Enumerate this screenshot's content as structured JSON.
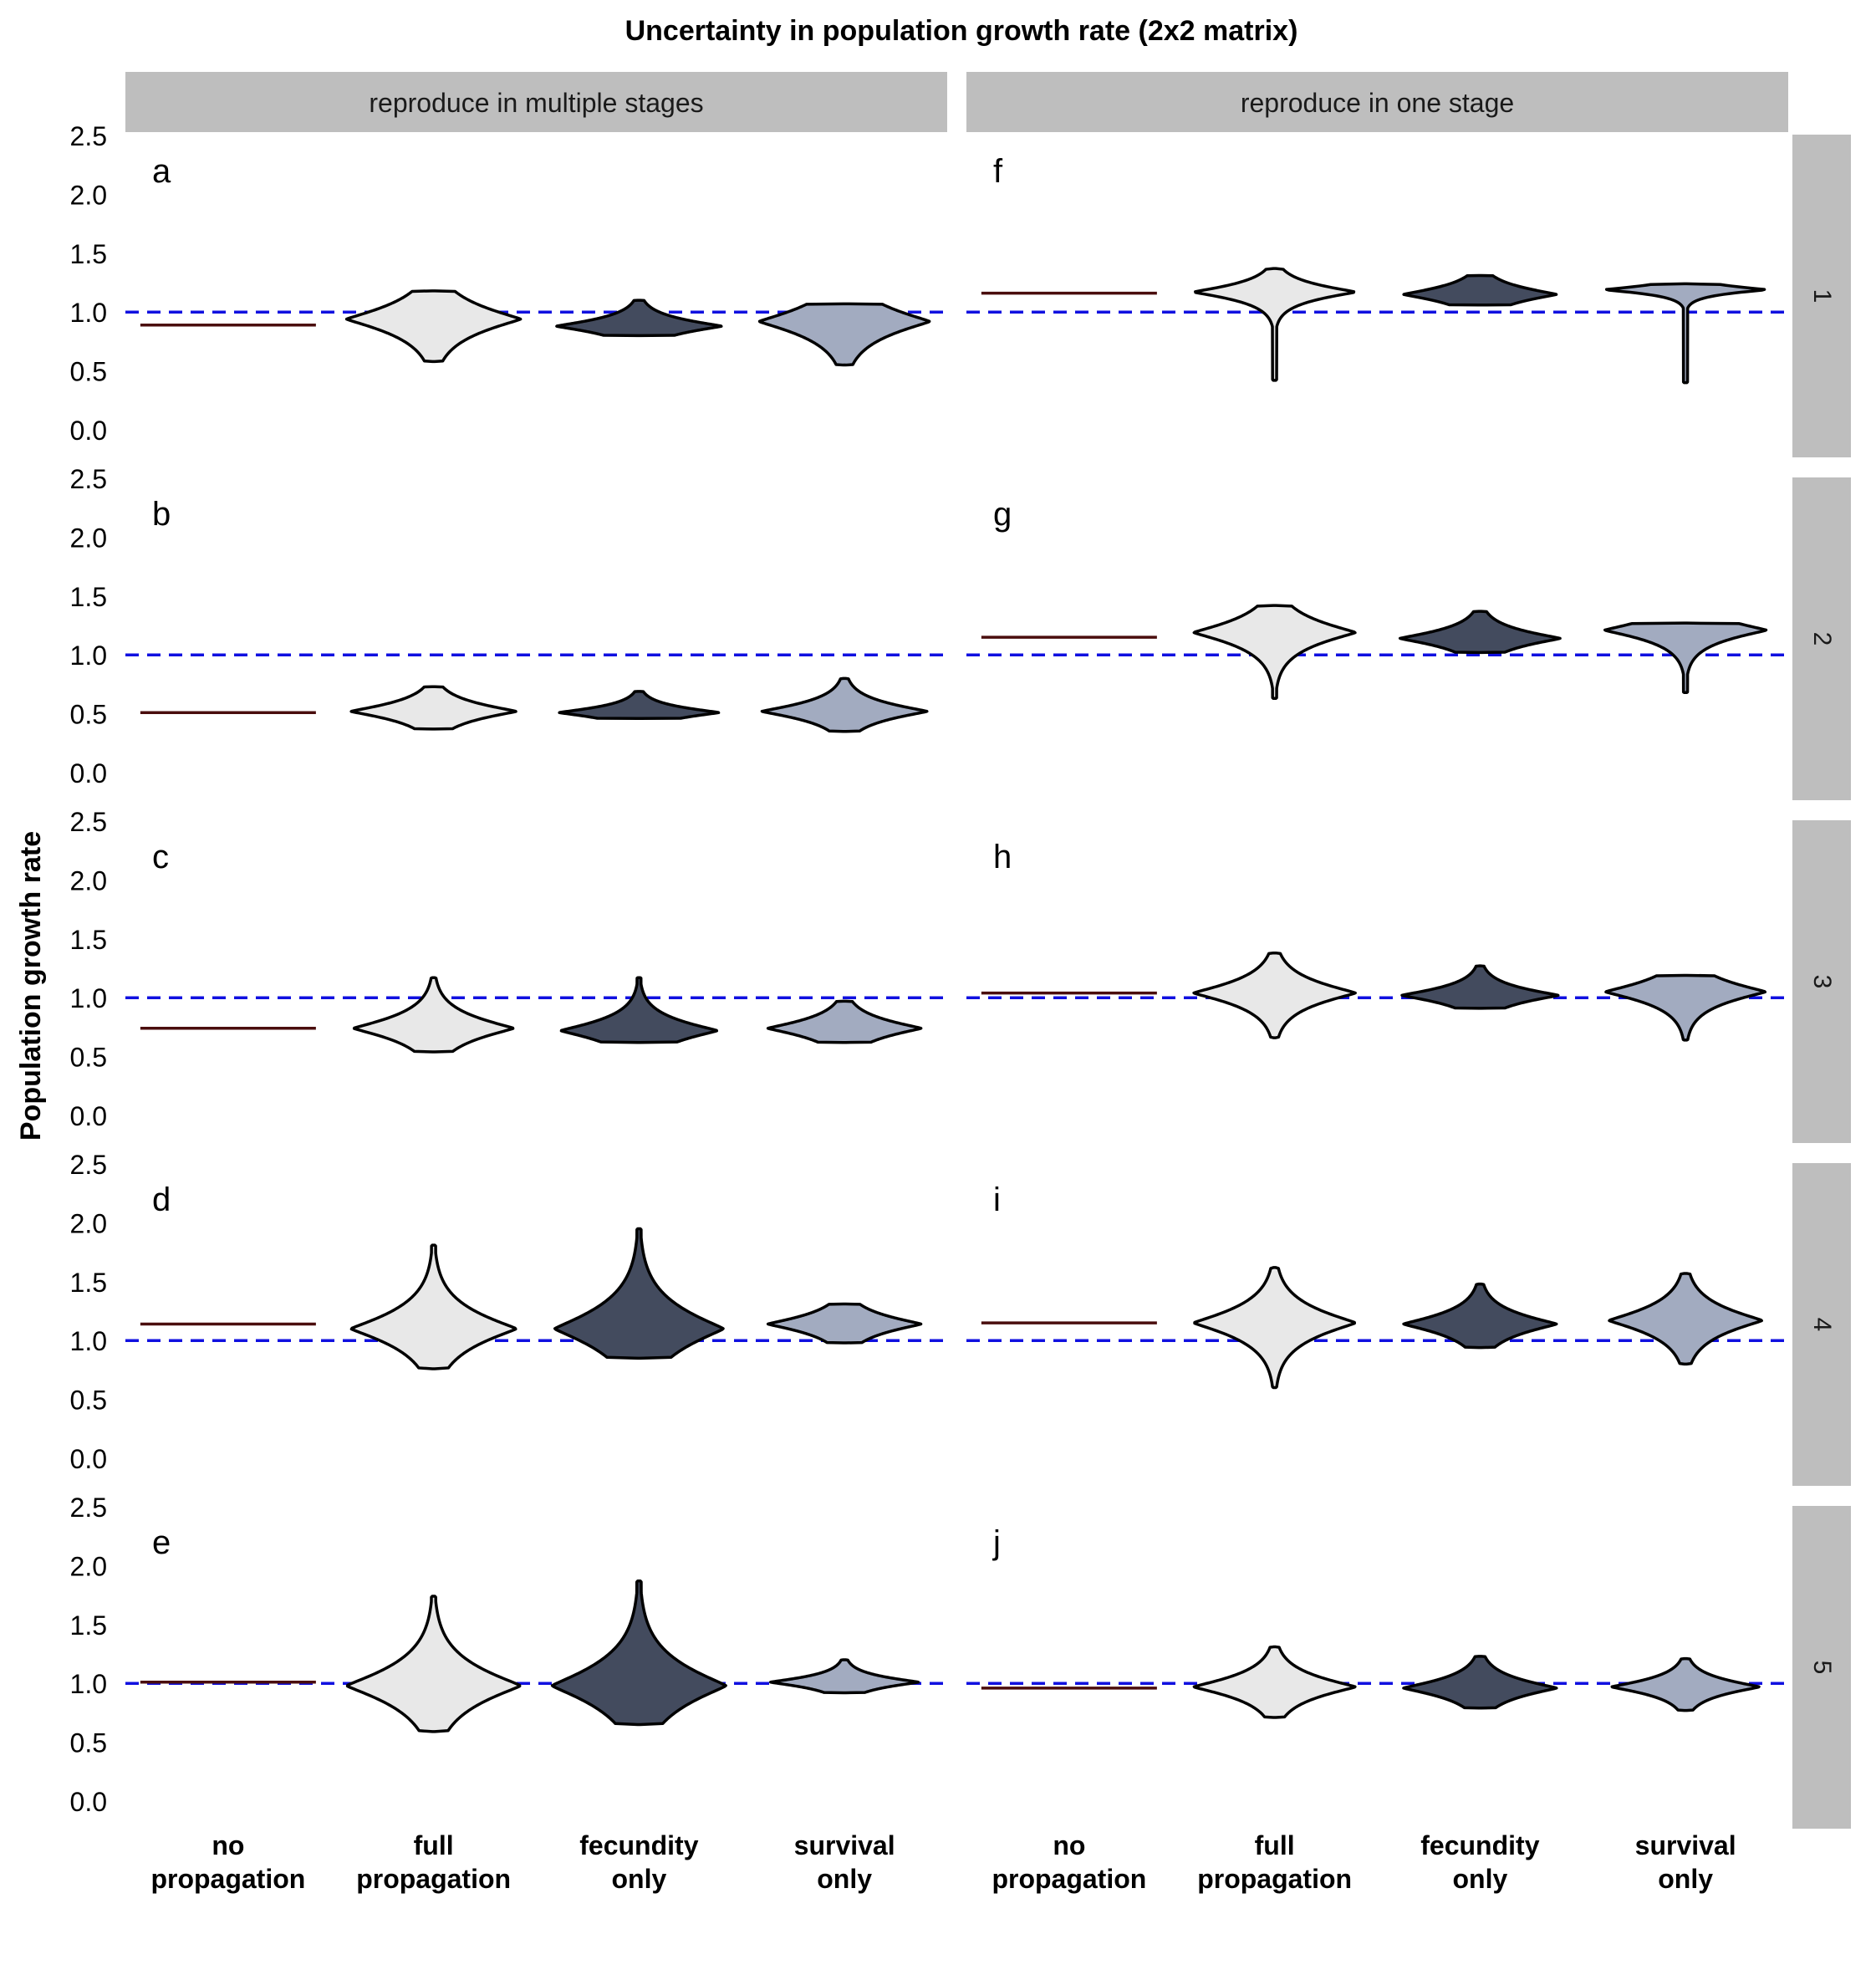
{
  "chart_data": {
    "type": "violin",
    "title": "Uncertainty in population growth rate (2x2 matrix)",
    "ylabel": "Population growth rate",
    "xlabel": "",
    "ylim": [
      0.0,
      2.5
    ],
    "yticks": [
      "0.0",
      "0.5",
      "1.0",
      "1.5",
      "2.0",
      "2.5"
    ],
    "reference_line": {
      "y": 1.0,
      "style": "dashed",
      "color": "#1010e0"
    },
    "column_strips": [
      "reproduce in multiple stages",
      "reproduce in one stage"
    ],
    "row_strips": [
      "1",
      "2",
      "3",
      "4",
      "5"
    ],
    "categories": [
      "no\npropagation",
      "full\npropagation",
      "fecundity\nonly",
      "survival\nonly"
    ],
    "colors": {
      "no_propagation_line": "#4a0d0d",
      "full_propagation": "#e8e8e8",
      "fecundity_only": "#434b5e",
      "survival_only": "#a2abc0",
      "outline": "#000000",
      "strip": "#bebebe"
    },
    "panels": [
      {
        "label": "a",
        "row": 0,
        "col": 0,
        "no_propagation": 0.89,
        "violins": [
          {
            "category": "full propagation",
            "mode": 0.94,
            "lo": 0.58,
            "hi": 1.18,
            "width": 1.0,
            "shape": 0.55,
            "tail": 0.06
          },
          {
            "category": "fecundity only",
            "mode": 0.88,
            "lo": 0.8,
            "hi": 1.1,
            "width": 0.95,
            "shape": 0.28,
            "tail": 0.08
          },
          {
            "category": "survival only",
            "mode": 0.92,
            "lo": 0.55,
            "hi": 1.07,
            "width": 0.98,
            "shape": 0.55,
            "tail": 0.05
          }
        ]
      },
      {
        "label": "b",
        "row": 1,
        "col": 0,
        "no_propagation": 0.51,
        "violins": [
          {
            "category": "full propagation",
            "mode": 0.52,
            "lo": 0.37,
            "hi": 0.73,
            "width": 0.95,
            "shape": 0.33,
            "tail": 0.06
          },
          {
            "category": "fecundity only",
            "mode": 0.51,
            "lo": 0.46,
            "hi": 0.69,
            "width": 0.92,
            "shape": 0.22,
            "tail": 0.08
          },
          {
            "category": "survival only",
            "mode": 0.52,
            "lo": 0.35,
            "hi": 0.8,
            "width": 0.95,
            "shape": 0.33,
            "tail": 0.06
          }
        ]
      },
      {
        "label": "c",
        "row": 2,
        "col": 0,
        "no_propagation": 0.74,
        "violins": [
          {
            "category": "full propagation",
            "mode": 0.74,
            "lo": 0.54,
            "hi": 1.17,
            "width": 0.92,
            "shape": 0.45,
            "tail": 0.08
          },
          {
            "category": "fecundity only",
            "mode": 0.72,
            "lo": 0.62,
            "hi": 1.17,
            "width": 0.9,
            "shape": 0.4,
            "tail": 0.08
          },
          {
            "category": "survival only",
            "mode": 0.74,
            "lo": 0.62,
            "hi": 0.97,
            "width": 0.88,
            "shape": 0.35,
            "tail": 0.07
          }
        ]
      },
      {
        "label": "d",
        "row": 3,
        "col": 0,
        "no_propagation": 1.14,
        "violins": [
          {
            "category": "full propagation",
            "mode": 1.1,
            "lo": 0.76,
            "hi": 1.81,
            "width": 0.95,
            "shape": 0.65,
            "tail": 0.1
          },
          {
            "category": "fecundity only",
            "mode": 1.1,
            "lo": 0.85,
            "hi": 1.95,
            "width": 0.97,
            "shape": 0.78,
            "tail": 0.1
          },
          {
            "category": "survival only",
            "mode": 1.14,
            "lo": 0.98,
            "hi": 1.31,
            "width": 0.88,
            "shape": 0.35,
            "tail": 0.08
          }
        ]
      },
      {
        "label": "e",
        "row": 4,
        "col": 0,
        "no_propagation": 1.01,
        "violins": [
          {
            "category": "full propagation",
            "mode": 0.98,
            "lo": 0.59,
            "hi": 1.74,
            "width": 1.0,
            "shape": 0.72,
            "tail": 0.1
          },
          {
            "category": "fecundity only",
            "mode": 0.98,
            "lo": 0.65,
            "hi": 1.87,
            "width": 1.0,
            "shape": 0.8,
            "tail": 0.1
          },
          {
            "category": "survival only",
            "mode": 1.01,
            "lo": 0.92,
            "hi": 1.2,
            "width": 0.85,
            "shape": 0.22,
            "tail": 0.1
          }
        ]
      },
      {
        "label": "f",
        "row": 0,
        "col": 1,
        "no_propagation": 1.16,
        "violins": [
          {
            "category": "full propagation",
            "mode": 1.17,
            "lo": 0.42,
            "hi": 1.37,
            "width": 0.93,
            "shape": 0.3,
            "tail": 0.05
          },
          {
            "category": "fecundity only",
            "mode": 1.15,
            "lo": 1.06,
            "hi": 1.31,
            "width": 0.88,
            "shape": 0.3,
            "tail": 0.08
          },
          {
            "category": "survival only",
            "mode": 1.19,
            "lo": 0.4,
            "hi": 1.24,
            "width": 0.93,
            "shape": 0.16,
            "tail": 0.04
          }
        ]
      },
      {
        "label": "g",
        "row": 1,
        "col": 1,
        "no_propagation": 1.15,
        "violins": [
          {
            "category": "full propagation",
            "mode": 1.19,
            "lo": 0.63,
            "hi": 1.42,
            "width": 0.93,
            "shape": 0.48,
            "tail": 0.07
          },
          {
            "category": "fecundity only",
            "mode": 1.14,
            "lo": 1.02,
            "hi": 1.37,
            "width": 0.92,
            "shape": 0.32,
            "tail": 0.08
          },
          {
            "category": "survival only",
            "mode": 1.21,
            "lo": 0.68,
            "hi": 1.27,
            "width": 0.93,
            "shape": 0.38,
            "tail": 0.05
          }
        ]
      },
      {
        "label": "h",
        "row": 2,
        "col": 1,
        "no_propagation": 1.04,
        "violins": [
          {
            "category": "full propagation",
            "mode": 1.04,
            "lo": 0.66,
            "hi": 1.38,
            "width": 0.93,
            "shape": 0.45,
            "tail": 0.07
          },
          {
            "category": "fecundity only",
            "mode": 1.02,
            "lo": 0.91,
            "hi": 1.27,
            "width": 0.9,
            "shape": 0.3,
            "tail": 0.08
          },
          {
            "category": "survival only",
            "mode": 1.05,
            "lo": 0.64,
            "hi": 1.19,
            "width": 0.92,
            "shape": 0.42,
            "tail": 0.05
          }
        ]
      },
      {
        "label": "i",
        "row": 3,
        "col": 1,
        "no_propagation": 1.15,
        "violins": [
          {
            "category": "full propagation",
            "mode": 1.15,
            "lo": 0.6,
            "hi": 1.62,
            "width": 0.93,
            "shape": 0.55,
            "tail": 0.07
          },
          {
            "category": "fecundity only",
            "mode": 1.14,
            "lo": 0.94,
            "hi": 1.48,
            "width": 0.88,
            "shape": 0.4,
            "tail": 0.08
          },
          {
            "category": "survival only",
            "mode": 1.17,
            "lo": 0.8,
            "hi": 1.57,
            "width": 0.88,
            "shape": 0.5,
            "tail": 0.06
          }
        ]
      },
      {
        "label": "j",
        "row": 4,
        "col": 1,
        "no_propagation": 0.96,
        "violins": [
          {
            "category": "full propagation",
            "mode": 0.97,
            "lo": 0.71,
            "hi": 1.31,
            "width": 0.93,
            "shape": 0.42,
            "tail": 0.07
          },
          {
            "category": "fecundity only",
            "mode": 0.96,
            "lo": 0.79,
            "hi": 1.23,
            "width": 0.88,
            "shape": 0.35,
            "tail": 0.07
          },
          {
            "category": "survival only",
            "mode": 0.97,
            "lo": 0.77,
            "hi": 1.21,
            "width": 0.85,
            "shape": 0.3,
            "tail": 0.07
          }
        ]
      }
    ]
  }
}
